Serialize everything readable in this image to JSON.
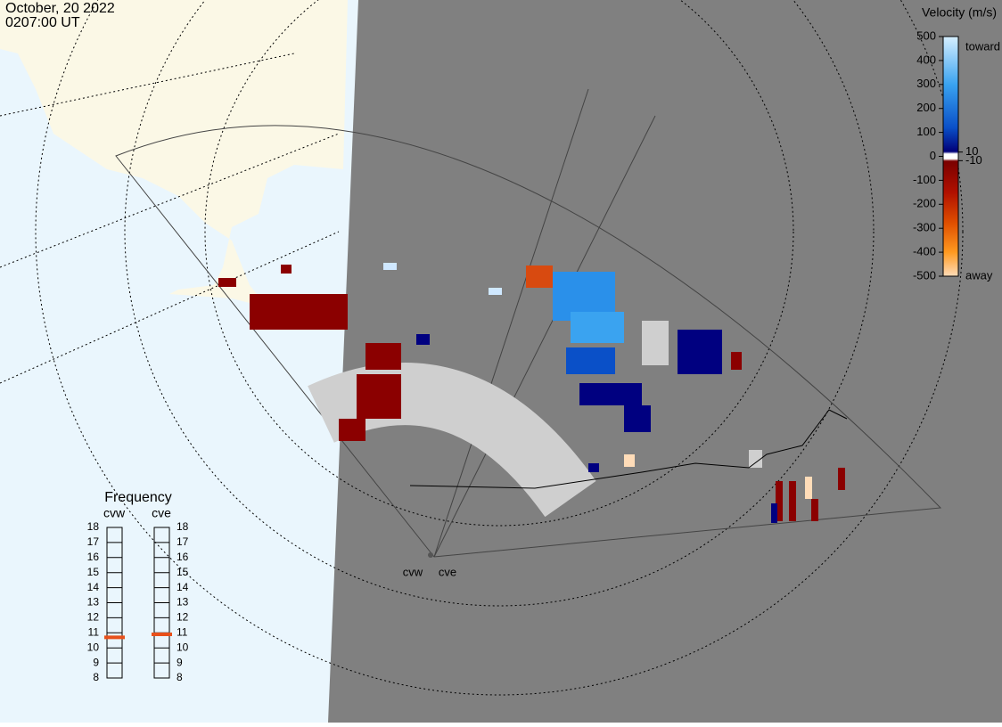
{
  "header": {
    "date": "October, 20 2022",
    "time": "0207:00 UT"
  },
  "velocity_scale": {
    "title": "Velocity (m/s)",
    "ticks": [
      500,
      400,
      300,
      200,
      100,
      0,
      -100,
      -200,
      -300,
      -400,
      -500
    ],
    "inner_ticks": [
      10,
      -10
    ],
    "toward": "toward",
    "away": "away"
  },
  "frequency": {
    "title": "Frequency",
    "radars": [
      {
        "name": "cvw",
        "ticks": [
          18,
          17,
          16,
          15,
          14,
          13,
          12,
          11,
          10,
          9,
          8
        ],
        "value": 10.7
      },
      {
        "name": "cve",
        "ticks": [
          18,
          17,
          16,
          15,
          14,
          13,
          12,
          11,
          10,
          9,
          8
        ],
        "value": 10.9
      }
    ]
  },
  "map": {
    "radar_labels": [
      "cvw",
      "cve"
    ]
  }
}
